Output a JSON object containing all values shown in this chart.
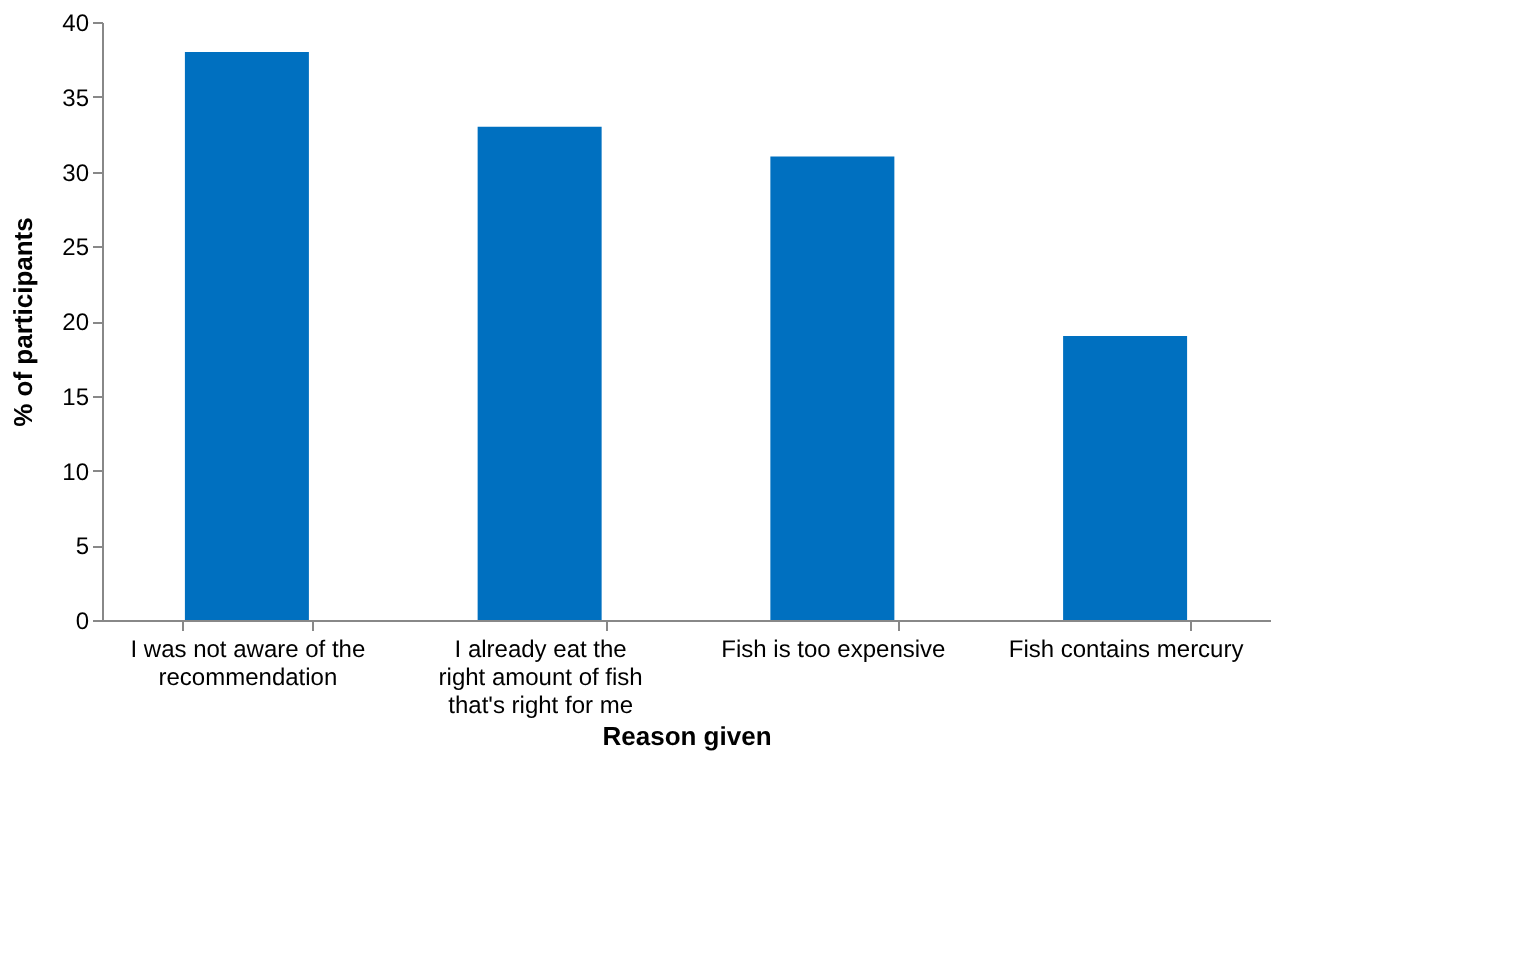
{
  "chart_data": {
    "type": "bar",
    "xlabel": "Reason given",
    "ylabel": "% of participants",
    "categories": [
      "I was not aware of the recommendation",
      "I already eat the right amount of fish that's right for me",
      "Fish is too expensive",
      "Fish contains mercury"
    ],
    "values": [
      38,
      33,
      31,
      19
    ],
    "color": "#0070c0",
    "ylim": [
      0,
      40
    ],
    "yticks": [
      0,
      5,
      10,
      15,
      20,
      25,
      30,
      35,
      40
    ],
    "grid": false
  }
}
